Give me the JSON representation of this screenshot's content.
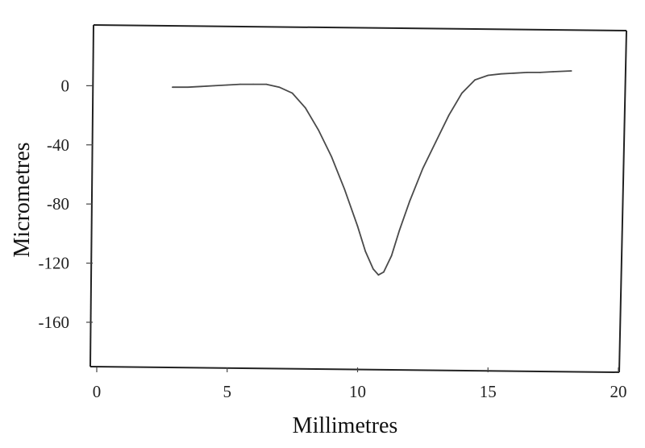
{
  "chart_data": {
    "type": "line",
    "title": "",
    "xlabel": "Millimetres",
    "ylabel": "Micrometres",
    "xlim": [
      0,
      20
    ],
    "ylim": [
      -190,
      40
    ],
    "x_ticks": [
      0,
      5,
      10,
      15,
      20
    ],
    "y_ticks": [
      0,
      -40,
      -80,
      -120,
      -160
    ],
    "x_tick_labels": [
      "0",
      "5",
      "10",
      "15",
      "20"
    ],
    "y_tick_labels": [
      "0",
      "-40",
      "-80",
      "-120",
      "-160"
    ],
    "grid": false,
    "series": [
      {
        "x": [
          2.9,
          3.5,
          4.0,
          4.5,
          5.0,
          5.5,
          6.0,
          6.5,
          7.0,
          7.5,
          8.0,
          8.5,
          9.0,
          9.5,
          10.0,
          10.3,
          10.6,
          10.8,
          11.0,
          11.3,
          11.6,
          12.0,
          12.5,
          13.0,
          13.5,
          14.0,
          14.5,
          15.0,
          15.5,
          16.0,
          16.5,
          17.0,
          17.5,
          18.2
        ],
        "y": [
          -1,
          -1,
          -0.5,
          0,
          0.5,
          1,
          1,
          1,
          -1,
          -5,
          -15,
          -30,
          -48,
          -70,
          -95,
          -112,
          -124,
          -128,
          -126,
          -115,
          -98,
          -78,
          -56,
          -38,
          -20,
          -5,
          4,
          7,
          8,
          8.5,
          9,
          9,
          9.5,
          10
        ]
      }
    ]
  }
}
